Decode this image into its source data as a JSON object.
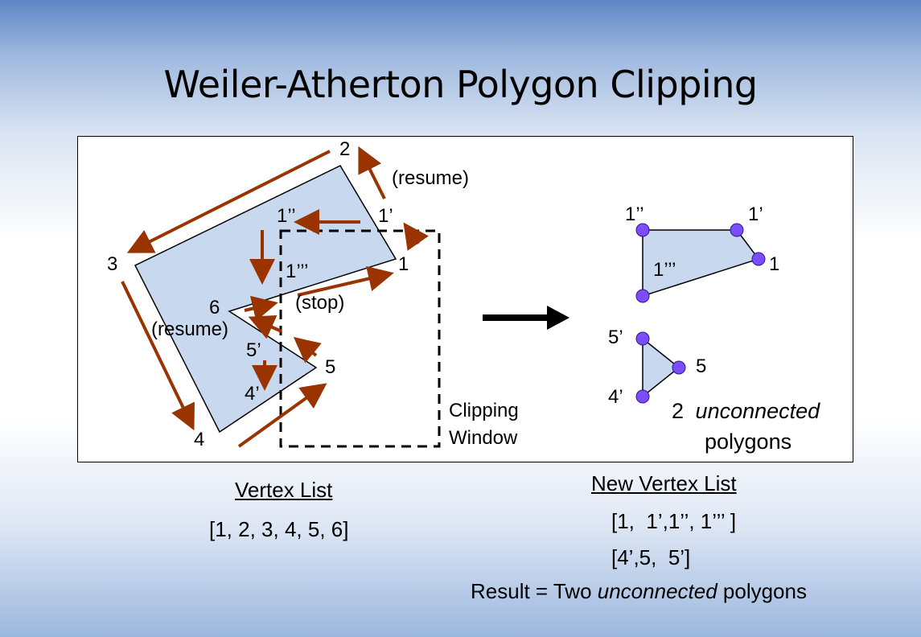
{
  "slide": {
    "title": "Weiler-Atherton Polygon Clipping"
  },
  "diagram": {
    "vertices": {
      "v1": "1",
      "v2": "2",
      "v3": "3",
      "v4": "4",
      "v5": "5",
      "v6": "6",
      "p1": "1’",
      "p1b": "1’’",
      "p1c": "1’’’",
      "p4": "4’",
      "p5": "5’"
    },
    "annotations": {
      "resume_top": "(resume)",
      "stop": "(stop)",
      "resume_left": "(resume)",
      "clipping_window_line1": "Clipping",
      "clipping_window_line2": "Window"
    },
    "result_polygons": {
      "tri1_labels": {
        "a": "1’’",
        "b": "1’",
        "c": "1",
        "d": "1’’’"
      },
      "tri2_labels": {
        "a": "5’",
        "b": "5",
        "c": "4’"
      },
      "caption_num": "2",
      "caption_italic": "unconnected",
      "caption_line2": "polygons"
    },
    "colors": {
      "polygon_fill": "#c8d8ef",
      "arrow": "#993300",
      "vertex_dot": "#7b4dff",
      "big_arrow": "#000000"
    }
  },
  "vertex_list": {
    "heading": "Vertex List",
    "values": "[1, 2, 3, 4, 5, 6]"
  },
  "new_vertex_list": {
    "heading": "New Vertex List",
    "line1": "[1,  1’,1’’, 1’’’ ]",
    "line2": "[4’,5,  5’]"
  },
  "result": {
    "prefix": "Result = Two ",
    "italic": "unconnected",
    "suffix": " polygons"
  }
}
